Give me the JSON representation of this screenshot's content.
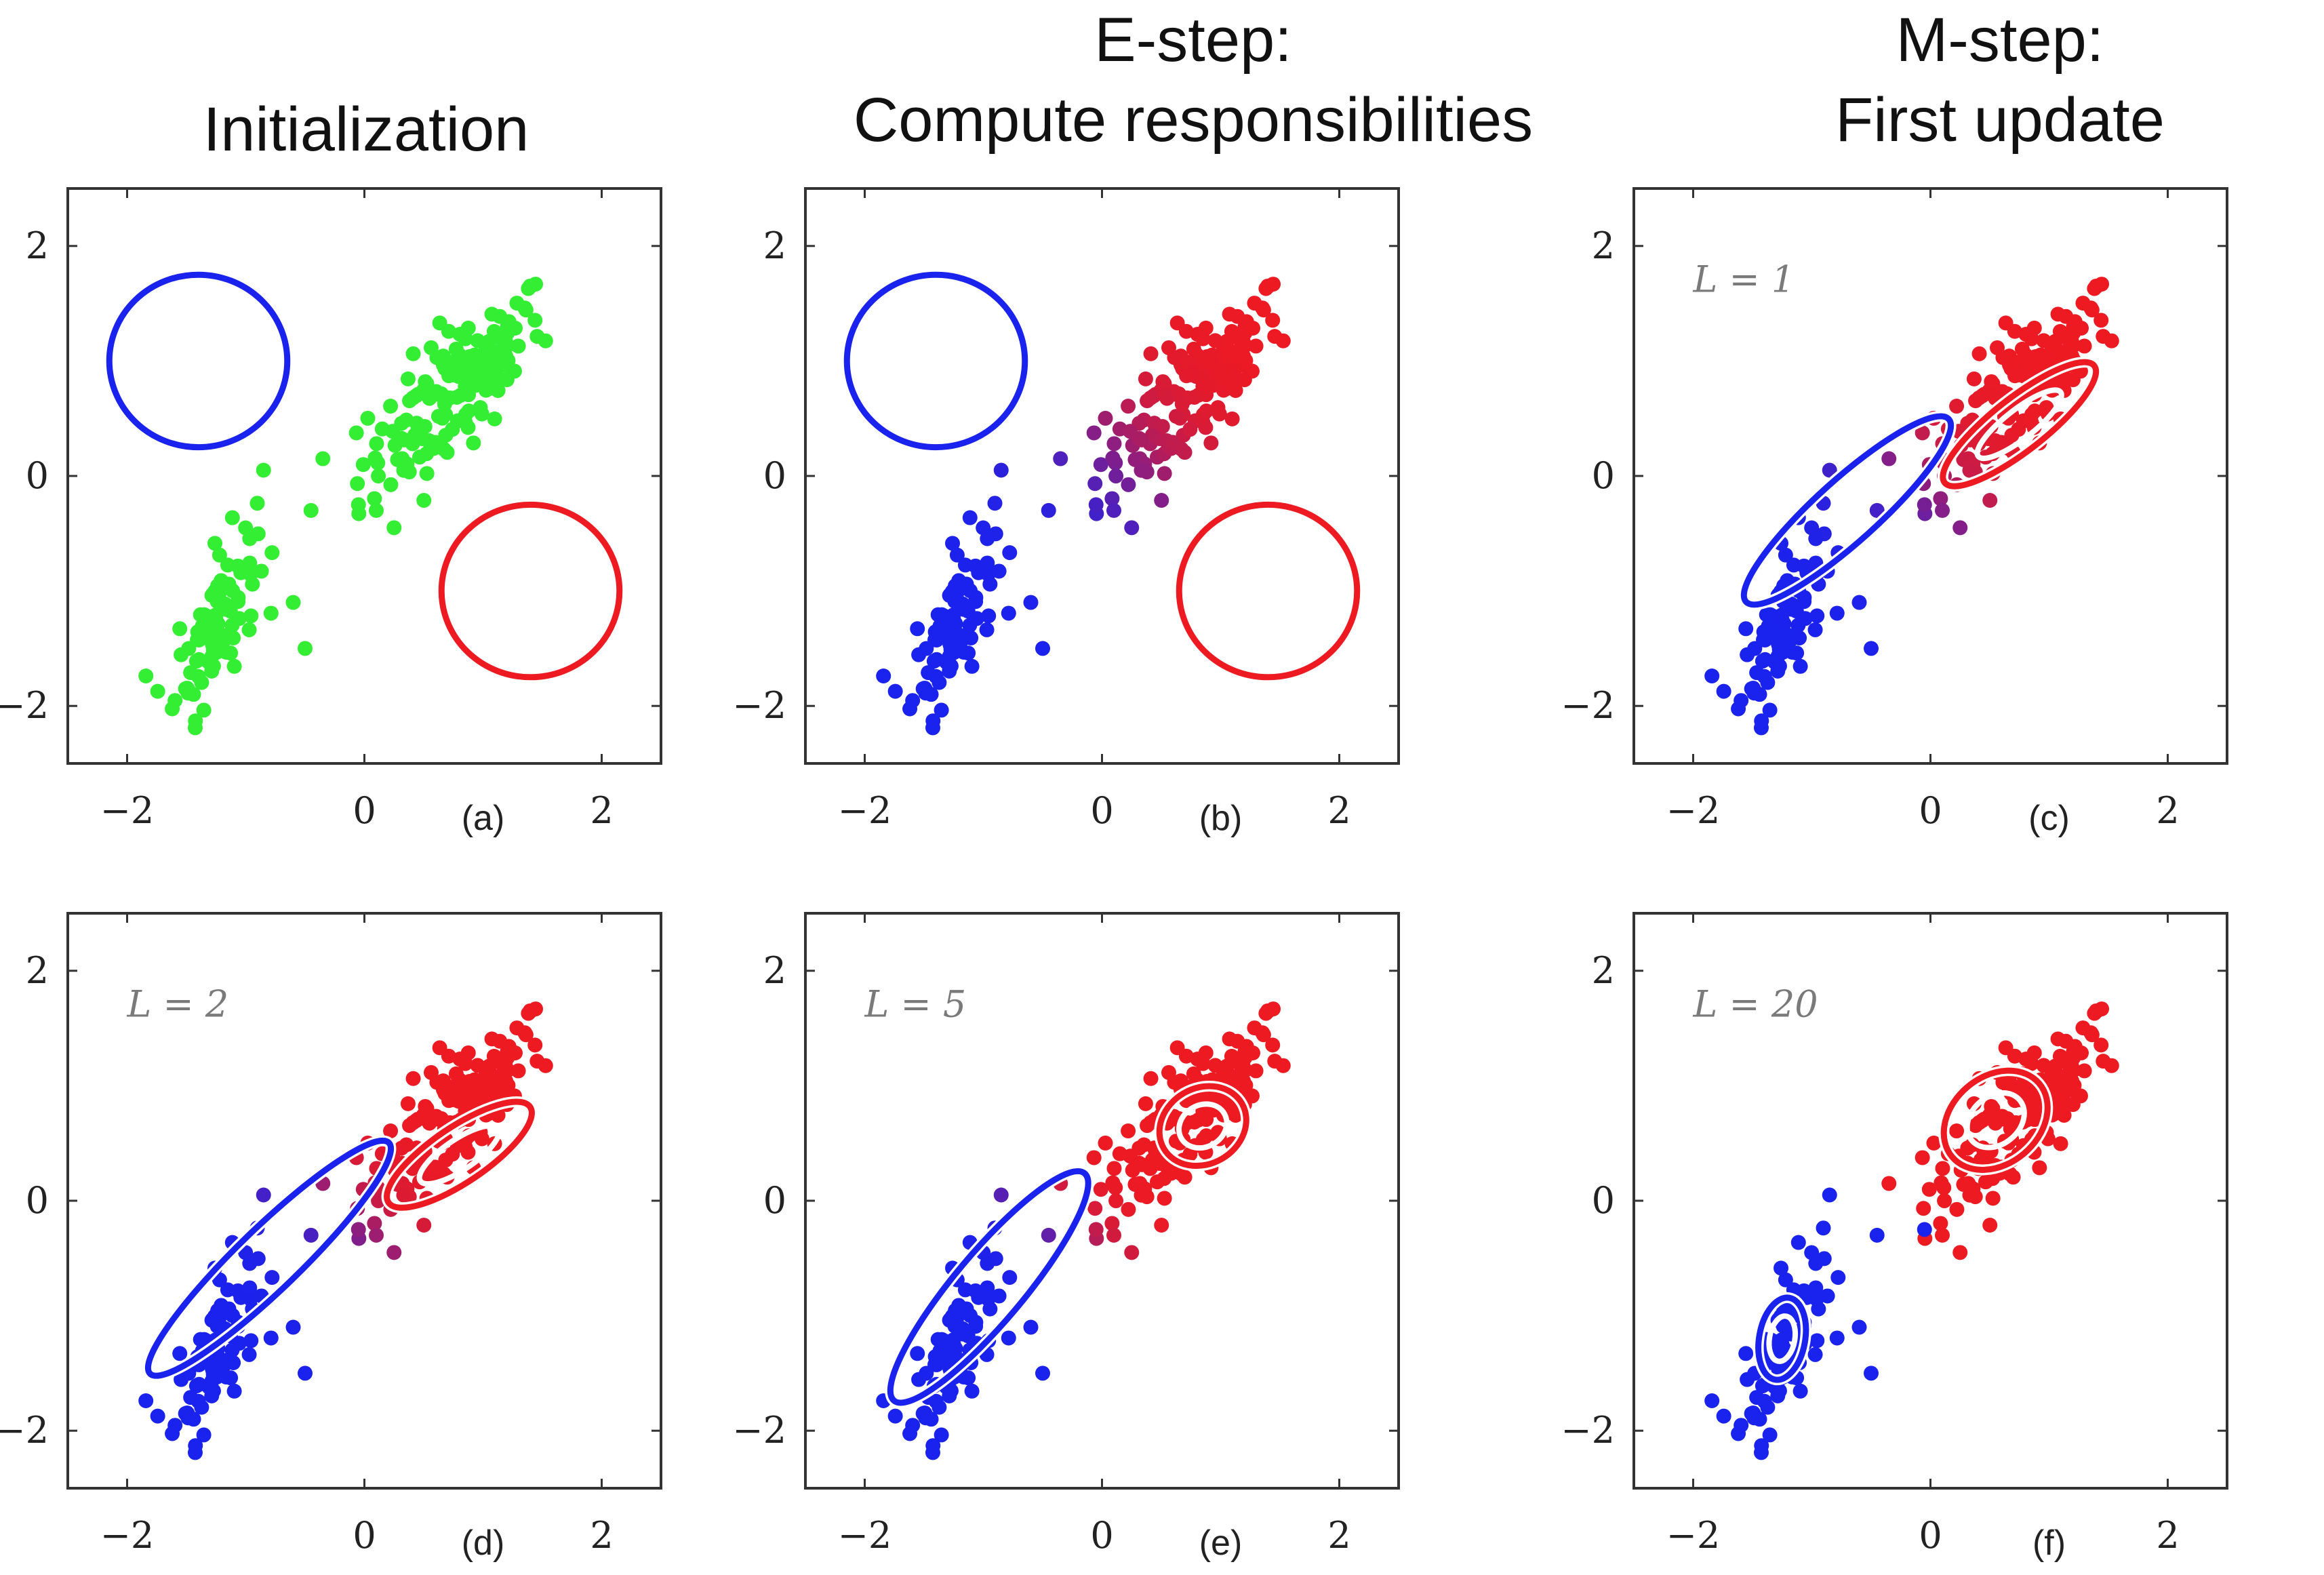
{
  "titles": {
    "initialization": "Initialization",
    "estep_line1": "E-step:",
    "estep_line2": "Compute responsibilities",
    "mstep_line1": "M-step:",
    "mstep_line2": "First update"
  },
  "axis_ticks": {
    "x": [
      "−2",
      "0",
      "2"
    ],
    "y": [
      "2",
      "0",
      "−2"
    ]
  },
  "colors": {
    "unassigned": "#33ee33",
    "cluster1": "#1a22ee",
    "cluster2": "#ee1a22",
    "frame": "#333333"
  },
  "panels": [
    {
      "label": "(a)",
      "iteration": "",
      "stage": "init"
    },
    {
      "label": "(b)",
      "iteration": "",
      "stage": "estep"
    },
    {
      "label": "(c)",
      "iteration": "L = 1",
      "stage": "L1"
    },
    {
      "label": "(d)",
      "iteration": "L = 2",
      "stage": "L2"
    },
    {
      "label": "(e)",
      "iteration": "L = 5",
      "stage": "L5"
    },
    {
      "label": "(f)",
      "iteration": "L = 20",
      "stage": "L20"
    }
  ],
  "components": {
    "init": {
      "blue": {
        "mean": [
          -1.4,
          1.0
        ],
        "rx": 0.75,
        "ry": 0.75,
        "angle": 0
      },
      "red": {
        "mean": [
          1.4,
          -1.0
        ],
        "rx": 0.75,
        "ry": 0.75,
        "angle": 0
      }
    },
    "L1": {
      "blue": {
        "mean": [
          -0.7,
          -0.3
        ],
        "rx": 1.15,
        "ry": 0.27,
        "angle": 42
      },
      "red": {
        "mean": [
          0.75,
          0.45
        ],
        "rx": 0.8,
        "ry": 0.23,
        "angle": 38
      }
    },
    "L2": {
      "blue": {
        "mean": [
          -0.8,
          -0.5
        ],
        "rx": 1.4,
        "ry": 0.27,
        "angle": 44
      },
      "red": {
        "mean": [
          0.8,
          0.4
        ],
        "rx": 0.72,
        "ry": 0.24,
        "angle": 34
      }
    },
    "L5": {
      "blue": {
        "mean": [
          -0.95,
          -0.75
        ],
        "rx": 1.25,
        "ry": 0.3,
        "angle": 50
      },
      "red": {
        "mean": [
          0.85,
          0.65
        ],
        "rx": 0.38,
        "ry": 0.33,
        "angle": 30
      }
    },
    "L20": {
      "blue": {
        "mean": [
          -1.25,
          -1.2
        ],
        "rx": 0.35,
        "ry": 0.2,
        "angle": 80
      },
      "red": {
        "mean": [
          0.55,
          0.7
        ],
        "rx": 0.48,
        "ry": 0.38,
        "angle": 40
      }
    }
  }
}
